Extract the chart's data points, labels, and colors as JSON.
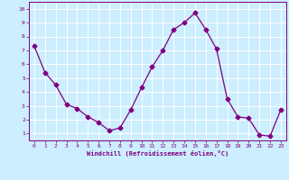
{
  "x": [
    0,
    1,
    2,
    3,
    4,
    5,
    6,
    7,
    8,
    9,
    10,
    11,
    12,
    13,
    14,
    15,
    16,
    17,
    18,
    19,
    20,
    21,
    22,
    23
  ],
  "y": [
    7.3,
    5.4,
    4.5,
    3.1,
    2.8,
    2.2,
    1.8,
    1.2,
    1.4,
    2.7,
    4.3,
    5.8,
    7.0,
    8.5,
    9.0,
    9.7,
    8.5,
    7.1,
    3.5,
    2.2,
    2.1,
    0.9,
    0.8,
    2.7
  ],
  "line_color": "#800080",
  "marker": "D",
  "marker_size": 2.5,
  "bg_color": "#cceeff",
  "grid_color": "#ffffff",
  "xlabel": "Windchill (Refroidissement éolien,°C)",
  "xlabel_color": "#800080",
  "tick_color": "#800080",
  "label_color": "#800080",
  "ylim": [
    0.5,
    10.5
  ],
  "xlim": [
    -0.5,
    23.5
  ],
  "yticks": [
    1,
    2,
    3,
    4,
    5,
    6,
    7,
    8,
    9,
    10
  ],
  "xticks": [
    0,
    1,
    2,
    3,
    4,
    5,
    6,
    7,
    8,
    9,
    10,
    11,
    12,
    13,
    14,
    15,
    16,
    17,
    18,
    19,
    20,
    21,
    22,
    23
  ]
}
